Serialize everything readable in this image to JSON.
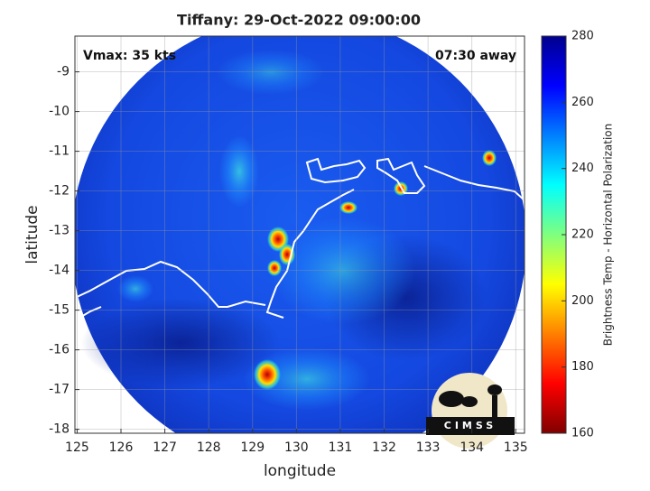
{
  "chart_data": {
    "type": "map",
    "title": "Tiffany: 29-Oct-2022 09:00:00",
    "annotations": [
      "Vmax: 35 kts",
      "07:30 away"
    ],
    "x_label": "longitude",
    "y_label": "latitude",
    "xlim": [
      124.95,
      135.2
    ],
    "xticks": [
      125,
      126,
      127,
      128,
      129,
      130,
      131,
      132,
      133,
      134,
      135
    ],
    "ylim": [
      -18.1,
      -8.1
    ],
    "yticks": [
      -18,
      -17,
      -16,
      -15,
      -14,
      -13,
      -12,
      -11,
      -10,
      -9
    ],
    "grid": true,
    "colorbar": {
      "label": "Brightness Temp - Horizontal Polarization",
      "lim": [
        160,
        280
      ],
      "ticks": [
        160,
        180,
        200,
        220,
        240,
        260,
        280
      ],
      "colormap": "jet"
    },
    "logo_text": "CIMSS"
  }
}
